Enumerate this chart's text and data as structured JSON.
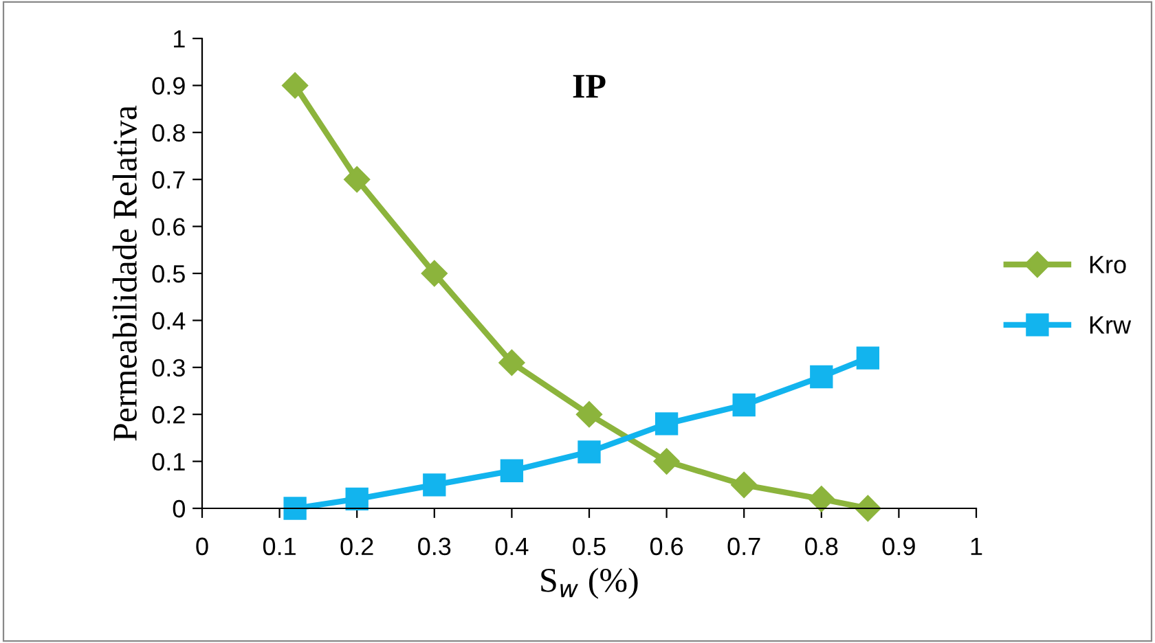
{
  "chart_data": {
    "type": "line",
    "title": "IP",
    "xlabel": "S$_{w}$ (%)",
    "ylabel": "Permeabilidade Relativa",
    "x": [
      0.12,
      0.2,
      0.3,
      0.4,
      0.5,
      0.6,
      0.7,
      0.8,
      0.86
    ],
    "series": [
      {
        "name": "Kro",
        "color": "#8cb43c",
        "marker": "diamond",
        "values": [
          0.9,
          0.7,
          0.5,
          0.31,
          0.2,
          0.1,
          0.05,
          0.02,
          0.0
        ]
      },
      {
        "name": "Krw",
        "color": "#12b4ee",
        "marker": "square",
        "values": [
          0.0,
          0.02,
          0.05,
          0.08,
          0.12,
          0.18,
          0.22,
          0.28,
          0.32
        ]
      }
    ],
    "xlim": [
      0,
      1
    ],
    "xticks": [
      0,
      0.1,
      0.2,
      0.3,
      0.4,
      0.5,
      0.6,
      0.7,
      0.8,
      0.9,
      1
    ],
    "ylim": [
      0,
      1
    ],
    "yticks": [
      0,
      0.1,
      0.2,
      0.3,
      0.4,
      0.5,
      0.6,
      0.7,
      0.8,
      0.9,
      1
    ],
    "grid": false,
    "legend": "right"
  }
}
